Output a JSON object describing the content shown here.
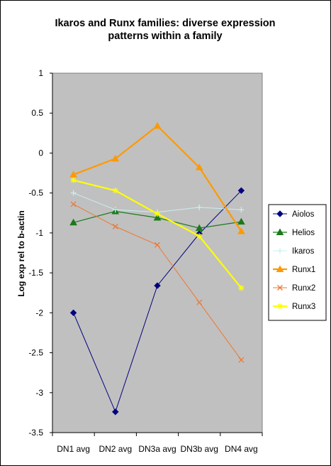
{
  "chart_data": {
    "type": "line",
    "title": [
      "Ikaros and Runx families: diverse expression",
      "patterns within a family"
    ],
    "xlabel": "",
    "ylabel": "Log exp rel to b-actin",
    "categories": [
      "DN1 avg",
      "DN2 avg",
      "DN3a avg",
      "DN3b avg",
      "DN4 avg"
    ],
    "ylim": [
      -3.5,
      1
    ],
    "yticks": [
      1,
      0.5,
      0,
      -0.5,
      -1,
      -1.5,
      -2,
      -2.5,
      -3,
      -3.5
    ],
    "ytick_labels": [
      "1",
      "0.5",
      "0",
      "-0.5",
      "-1",
      "-1.5",
      "-2",
      "-2.5",
      "-3",
      "-3.5"
    ],
    "grid": false,
    "legend_position": "right",
    "plot_background": "#c0c0c0",
    "series": [
      {
        "name": "Aiolos",
        "color": "#000080",
        "marker": "diamond",
        "values": [
          -2.0,
          -3.24,
          -1.66,
          -1.01,
          -0.47
        ]
      },
      {
        "name": "Helios",
        "color": "#1a7a1a",
        "marker": "triangle",
        "values": [
          -0.87,
          -0.73,
          -0.81,
          -0.94,
          -0.86
        ]
      },
      {
        "name": "Ikaros",
        "color": "#c8f0f0",
        "marker": "plus",
        "values": [
          -0.5,
          -0.71,
          -0.74,
          -0.68,
          -0.71
        ]
      },
      {
        "name": "Runx1",
        "color": "#ff9900",
        "marker": "triangle",
        "values": [
          -0.27,
          -0.07,
          0.34,
          -0.18,
          -0.98
        ]
      },
      {
        "name": "Runx2",
        "color": "#f07830",
        "marker": "x",
        "values": [
          -0.64,
          -0.92,
          -1.15,
          -1.87,
          -2.59
        ]
      },
      {
        "name": "Runx3",
        "color": "#ffff00",
        "marker": "star",
        "values": [
          -0.34,
          -0.47,
          -0.76,
          -1.04,
          -1.69
        ]
      }
    ]
  }
}
